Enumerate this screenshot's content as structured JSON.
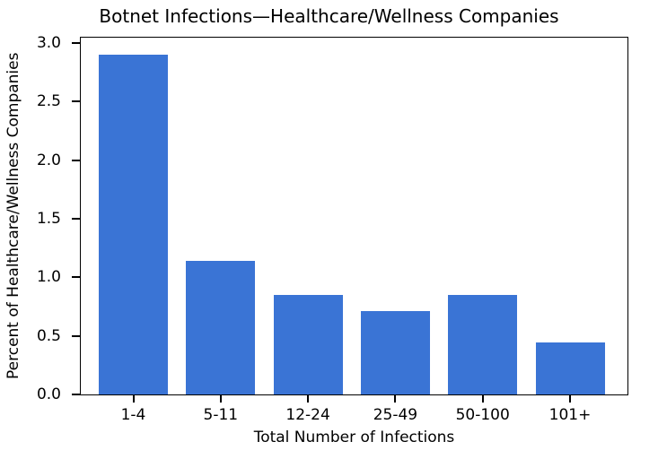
{
  "chart_data": {
    "type": "bar",
    "title": "Botnet Infections—Healthcare/Wellness Companies",
    "xlabel": "Total Number of Infections",
    "ylabel": "Percent of Healthcare/Wellness Companies",
    "categories": [
      "1-4",
      "5-11",
      "12-24",
      "25-49",
      "50-100",
      "101+"
    ],
    "values": [
      2.9,
      1.14,
      0.85,
      0.71,
      0.85,
      0.44
    ],
    "ylim": [
      0,
      3.06
    ],
    "yticks": [
      0,
      0.5,
      1,
      1.5,
      2,
      2.5,
      3
    ],
    "ytick_labels": [
      "0.0",
      "0.5",
      "1.0",
      "1.5",
      "2.0",
      "2.5",
      "3.0"
    ],
    "grid": false,
    "legend": "none",
    "bar_color": "#3a74d5",
    "axis_color": "#000000",
    "text_color": "#000000",
    "background_color": "#ffffff"
  }
}
